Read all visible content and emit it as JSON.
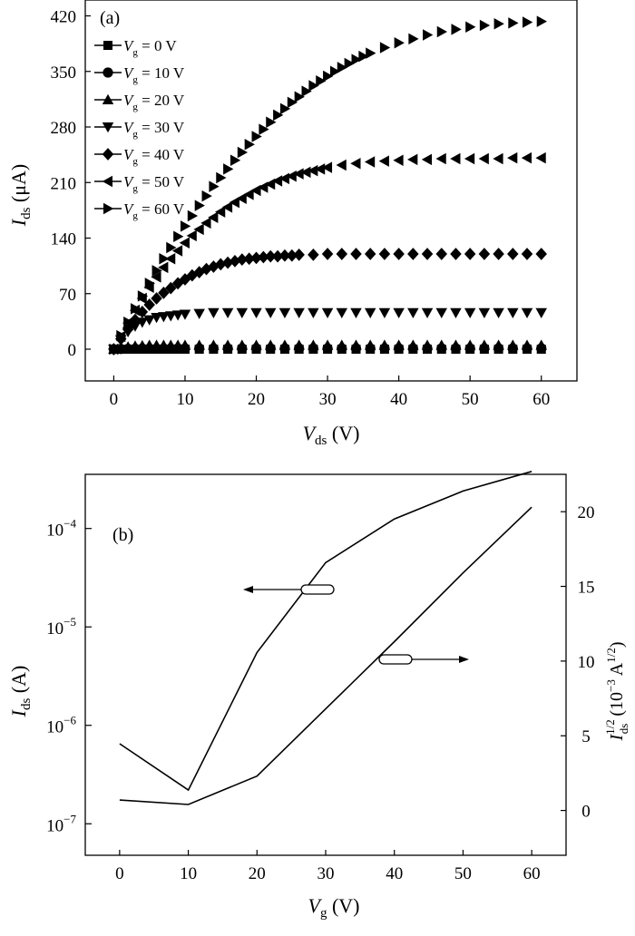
{
  "chart_data": [
    {
      "panel_label": "(a)",
      "type": "scatter",
      "xlabel_main": "V",
      "xlabel_sub": "ds",
      "xlabel_unit": " (V)",
      "ylabel_main": "I",
      "ylabel_sub": "ds",
      "ylabel_unit": " (μA)",
      "xlim": [
        -4,
        65
      ],
      "ylim": [
        -40,
        440
      ],
      "xticks": [
        0,
        10,
        20,
        30,
        40,
        50,
        60
      ],
      "yticks": [
        0,
        70,
        140,
        210,
        280,
        350,
        420
      ],
      "legend_placement": "top-left",
      "series": [
        {
          "legend_var": "V",
          "legend_sub": "g",
          "legend_value": " = 0 V",
          "marker": "square",
          "x": [
            0,
            1,
            2,
            3,
            4,
            5,
            6,
            7,
            8,
            9,
            10,
            12,
            14,
            16,
            18,
            20,
            22,
            24,
            26,
            28,
            30,
            32,
            34,
            36,
            38,
            40,
            42,
            44,
            46,
            48,
            50,
            52,
            54,
            56,
            58,
            60
          ],
          "y": [
            0,
            0,
            0,
            0,
            0,
            0,
            0,
            0,
            0,
            0,
            0,
            0,
            0,
            0,
            0,
            0,
            0,
            0,
            0,
            0,
            0,
            0,
            0,
            0,
            0,
            0,
            0,
            0,
            0,
            0,
            0,
            0,
            0,
            0,
            0,
            0
          ]
        },
        {
          "legend_var": "V",
          "legend_sub": "g",
          "legend_value": " = 10 V",
          "marker": "circle",
          "x": [
            0,
            1,
            2,
            3,
            4,
            5,
            6,
            7,
            8,
            9,
            10,
            12,
            14,
            16,
            18,
            20,
            22,
            24,
            26,
            28,
            30,
            32,
            34,
            36,
            38,
            40,
            42,
            44,
            46,
            48,
            50,
            52,
            54,
            56,
            58,
            60
          ],
          "y": [
            0,
            0.3,
            0.5,
            0.6,
            0.7,
            0.8,
            0.8,
            0.9,
            0.9,
            1,
            1,
            1,
            1,
            1,
            1,
            1,
            1,
            1,
            1,
            1,
            1,
            1,
            1,
            1,
            1,
            1,
            1,
            1,
            1,
            1,
            1,
            1,
            1,
            1,
            1,
            1
          ]
        },
        {
          "legend_var": "V",
          "legend_sub": "g",
          "legend_value": " = 20 V",
          "marker": "triangle-up",
          "x": [
            0,
            1,
            2,
            3,
            4,
            5,
            6,
            7,
            8,
            9,
            10,
            12,
            14,
            16,
            18,
            20,
            22,
            24,
            26,
            28,
            30,
            32,
            34,
            36,
            38,
            40,
            42,
            44,
            46,
            48,
            50,
            52,
            54,
            56,
            58,
            60
          ],
          "y": [
            0,
            2,
            3,
            4,
            4.5,
            5,
            5,
            5,
            5,
            5,
            5,
            5,
            5,
            5,
            5,
            5,
            5,
            5,
            5,
            5,
            5,
            5,
            5,
            5,
            5,
            5,
            5,
            5,
            5,
            5,
            5,
            5,
            5,
            5,
            5,
            5
          ]
        },
        {
          "legend_var": "V",
          "legend_sub": "g",
          "legend_value": " = 30 V",
          "marker": "triangle-down",
          "x": [
            0,
            1,
            2,
            3,
            4,
            5,
            6,
            7,
            8,
            9,
            10,
            12,
            14,
            16,
            18,
            20,
            22,
            24,
            26,
            28,
            30,
            32,
            34,
            36,
            38,
            40,
            42,
            44,
            46,
            48,
            50,
            52,
            54,
            56,
            58,
            60
          ],
          "y": [
            0,
            12,
            22,
            29,
            34,
            37,
            40,
            41,
            42,
            43,
            44,
            45,
            46,
            46,
            46,
            46,
            46,
            46,
            46,
            46,
            46,
            46,
            46,
            46,
            46,
            46,
            46,
            46,
            46,
            46,
            46,
            46,
            46,
            46,
            46,
            46
          ]
        },
        {
          "legend_var": "V",
          "legend_sub": "g",
          "legend_value": " = 40 V",
          "marker": "diamond",
          "x": [
            0,
            1,
            2,
            3,
            4,
            5,
            6,
            7,
            8,
            9,
            10,
            11,
            12,
            13,
            14,
            15,
            16,
            17,
            18,
            19,
            20,
            21,
            22,
            23,
            24,
            25,
            26,
            28,
            30,
            32,
            34,
            36,
            38,
            40,
            42,
            44,
            46,
            48,
            50,
            52,
            54,
            56,
            58,
            60
          ],
          "y": [
            0,
            13,
            25,
            37,
            47,
            56,
            64,
            71,
            77,
            83,
            88,
            93,
            97,
            101,
            104,
            107,
            109,
            111,
            113,
            114,
            115,
            116,
            117,
            117,
            118,
            118,
            119,
            119,
            120,
            120,
            120,
            120,
            120,
            120,
            120,
            120,
            120,
            120,
            120,
            120,
            120,
            120,
            120,
            120
          ]
        },
        {
          "legend_var": "V",
          "legend_sub": "g",
          "legend_value": " = 50 V",
          "marker": "triangle-left",
          "x": [
            0,
            1,
            2,
            3,
            4,
            5,
            6,
            7,
            8,
            9,
            10,
            11,
            12,
            13,
            14,
            15,
            16,
            17,
            18,
            19,
            20,
            21,
            22,
            23,
            24,
            25,
            26,
            27,
            28,
            29,
            30,
            32,
            34,
            36,
            38,
            40,
            42,
            44,
            46,
            48,
            50,
            52,
            54,
            56,
            58,
            60
          ],
          "y": [
            0,
            16,
            33,
            49,
            64,
            78,
            91,
            103,
            114,
            124,
            134,
            143,
            151,
            159,
            166,
            173,
            179,
            185,
            190,
            195,
            200,
            204,
            208,
            212,
            215,
            218,
            221,
            223,
            225,
            227,
            229,
            232,
            234,
            236,
            237,
            238,
            239,
            239,
            240,
            240,
            240,
            240,
            240,
            241,
            241,
            241
          ]
        },
        {
          "legend_var": "V",
          "legend_sub": "g",
          "legend_value": " = 60 V",
          "marker": "triangle-right",
          "x": [
            0,
            1,
            2,
            3,
            4,
            5,
            6,
            7,
            8,
            9,
            10,
            11,
            12,
            13,
            14,
            15,
            16,
            17,
            18,
            19,
            20,
            21,
            22,
            23,
            24,
            25,
            26,
            27,
            28,
            29,
            30,
            31,
            32,
            33,
            34,
            35,
            36,
            38,
            40,
            42,
            44,
            46,
            48,
            50,
            52,
            54,
            56,
            58,
            60
          ],
          "y": [
            0,
            17,
            34,
            51,
            67,
            83,
            99,
            114,
            128,
            142,
            155,
            168,
            181,
            193,
            205,
            216,
            227,
            238,
            248,
            258,
            268,
            277,
            286,
            295,
            303,
            311,
            318,
            325,
            332,
            338,
            344,
            350,
            355,
            360,
            365,
            369,
            373,
            380,
            386,
            391,
            396,
            400,
            403,
            406,
            408,
            410,
            411,
            412,
            413
          ]
        }
      ]
    },
    {
      "panel_label": "(b)",
      "type": "line",
      "xlabel_main": "V",
      "xlabel_sub": "g",
      "xlabel_unit": " (V)",
      "ylabel_main": "I",
      "ylabel_sub": "ds",
      "ylabel_unit": " (A)",
      "y2label_main": "I",
      "y2label_sup": "1/2",
      "y2label_sub": "ds",
      "y2label_unit_prefix": "(10",
      "y2label_unit_exp": "−3",
      "y2label_unit_mid": " A",
      "y2label_unit_exp2": "1/2",
      "y2label_unit_suffix": ")",
      "xlim": [
        -5,
        65
      ],
      "xticks": [
        0,
        10,
        20,
        30,
        40,
        50,
        60
      ],
      "y_log_exp_lim": [
        -7.32,
        -3.45
      ],
      "y_ticks_exp": [
        -7,
        -6,
        -5,
        -4
      ],
      "y_tick_base": "10",
      "y_tick_exps": [
        "−7",
        "−6",
        "−5",
        "−4"
      ],
      "y2lim": [
        -3,
        22.5
      ],
      "y2ticks": [
        0,
        5,
        10,
        15,
        20
      ],
      "series": [
        {
          "axis": "left",
          "x": [
            0,
            10,
            20,
            30,
            40,
            50,
            60
          ],
          "y": [
            6.5e-07,
            2.2e-07,
            5.5e-06,
            4.5e-05,
            0.000125,
            0.00024,
            0.00038
          ]
        },
        {
          "axis": "right",
          "x": [
            0,
            10,
            20,
            30,
            40,
            50,
            60
          ],
          "y": [
            0.7,
            0.4,
            2.3,
            6.8,
            11.3,
            15.9,
            20.3
          ]
        }
      ]
    }
  ]
}
